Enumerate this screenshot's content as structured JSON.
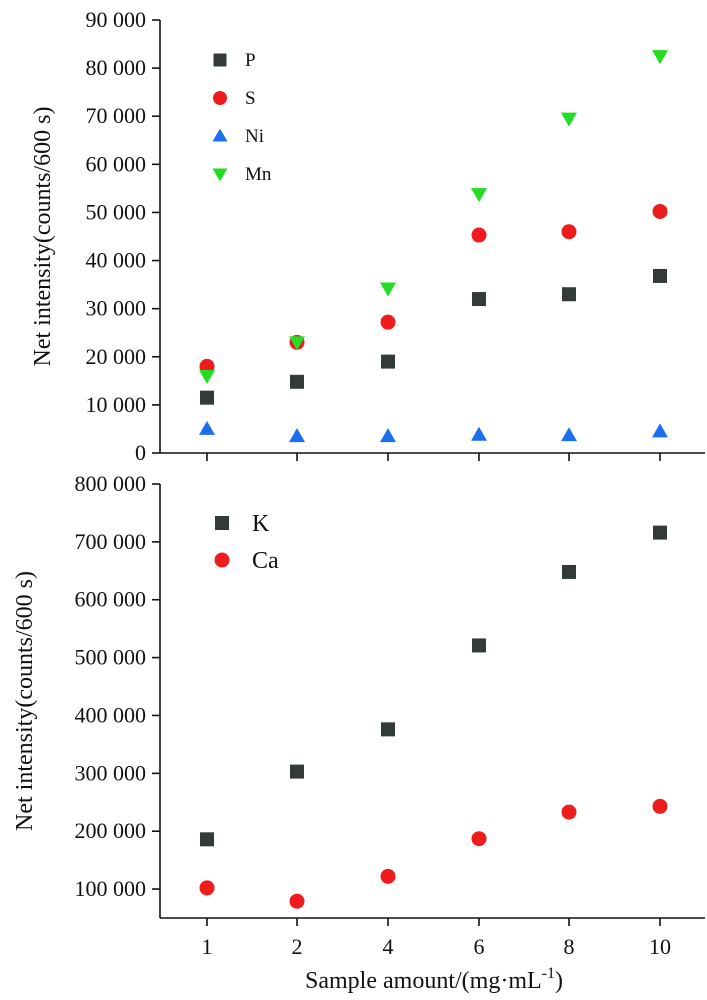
{
  "chart_data": [
    {
      "type": "scatter",
      "categories": [
        "1",
        "2",
        "4",
        "6",
        "8",
        "10"
      ],
      "xlabel": "",
      "ylabel": "Net intensity(counts/600 s)",
      "ylim": [
        0,
        90000
      ],
      "yticks": [
        "0",
        "10 000",
        "20 000",
        "30 000",
        "40 000",
        "50 000",
        "60 000",
        "70 000",
        "80 000",
        "90 000"
      ],
      "legend_position": "top-left",
      "series": [
        {
          "name": "P",
          "marker": "square",
          "color": "#333a3a",
          "values": [
            11500,
            14800,
            19000,
            32000,
            33000,
            36800
          ]
        },
        {
          "name": "S",
          "marker": "circle",
          "color": "#ee1c1c",
          "values": [
            18000,
            23000,
            27200,
            45300,
            46000,
            50200
          ]
        },
        {
          "name": "Ni",
          "marker": "triangle-up",
          "color": "#1a6ff0",
          "values": [
            5000,
            3500,
            3500,
            3800,
            3700,
            4500
          ]
        },
        {
          "name": "Mn",
          "marker": "triangle-down",
          "color": "#22dd22",
          "values": [
            16000,
            23000,
            34200,
            53800,
            69500,
            82500
          ]
        }
      ]
    },
    {
      "type": "scatter",
      "categories": [
        "1",
        "2",
        "4",
        "6",
        "8",
        "10"
      ],
      "xlabel": "Sample amount/(mg·mL",
      "xlabel_superscript": "-1",
      "xlabel_suffix": ")",
      "ylabel": "Net intensity(counts/600 s)",
      "ylim": [
        50000,
        800000
      ],
      "yticks": [
        "100 000",
        "200 000",
        "300 000",
        "400 000",
        "500 000",
        "600 000",
        "700 000",
        "800 000"
      ],
      "legend_position": "top-left",
      "series": [
        {
          "name": "K",
          "marker": "square",
          "color": "#333a3a",
          "values": [
            186000,
            303000,
            376000,
            521000,
            648000,
            716000
          ]
        },
        {
          "name": "Ca",
          "marker": "circle",
          "color": "#ee1c1c",
          "values": [
            102000,
            79000,
            122000,
            187000,
            233000,
            243000
          ]
        }
      ]
    }
  ]
}
